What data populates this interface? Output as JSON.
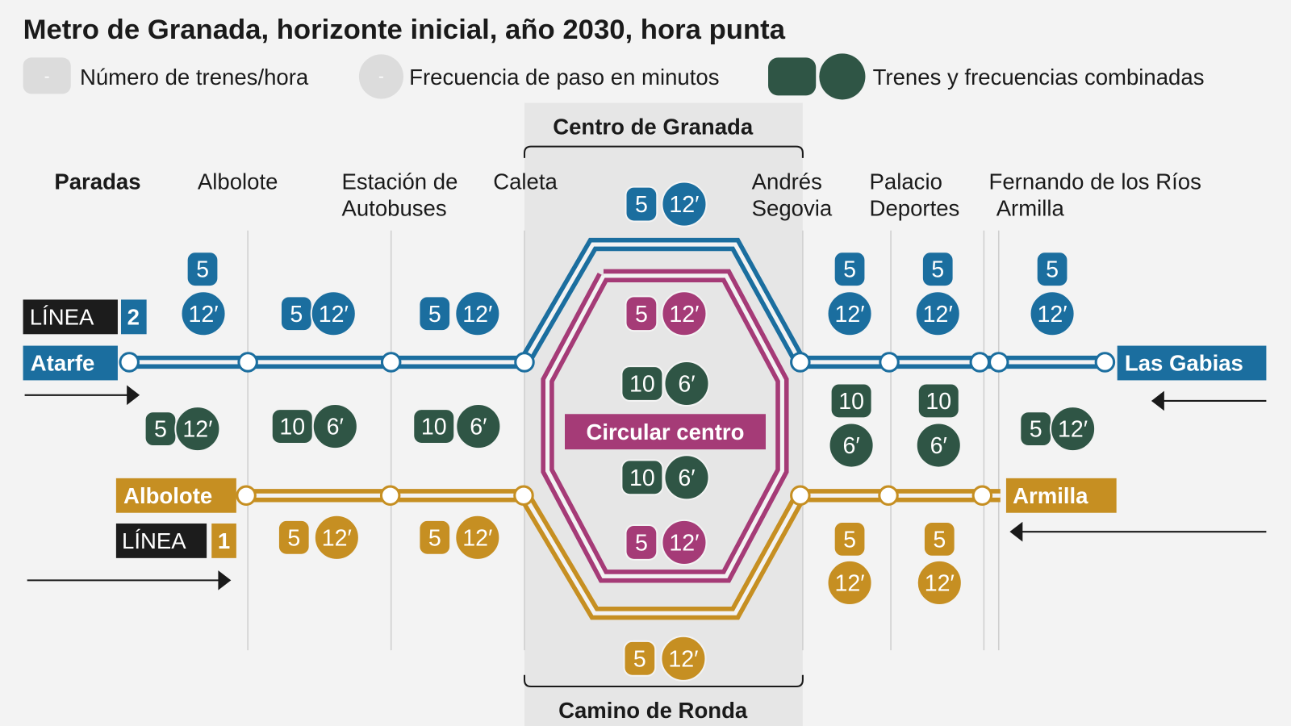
{
  "title": "Metro de Granada, horizonte inicial, año 2030, hora punta",
  "legend": [
    {
      "symbol": "-",
      "label": "Número de trenes/hora"
    },
    {
      "symbol": "-",
      "label": "Frecuencia de paso en minutos"
    },
    {
      "label": "Trenes y frecuencias combinadas"
    }
  ],
  "colors": {
    "linea2": "#1b6e9f",
    "linea1": "#c68f22",
    "circular": "#a53b77",
    "combined": "#2f5545",
    "label_bg": "#1c1c1c",
    "legend_gray": "#dcdcdc",
    "center_band": "#e6e6e6"
  },
  "center": {
    "top": "Centro de Granada",
    "bottom": "Camino de Ronda"
  },
  "stops_header": "Paradas",
  "stations": [
    {
      "line1": "Albolote",
      "line2": ""
    },
    {
      "line1": "Estación de",
      "line2": "Autobuses"
    },
    {
      "line1": "Caleta",
      "line2": ""
    },
    {
      "line1": "Andrés",
      "line2": "Segovia"
    },
    {
      "line1": "Palacio",
      "line2": "Deportes"
    },
    {
      "line1": "Fernando de los Ríos",
      "line2": "Armilla"
    }
  ],
  "lines": {
    "l2": {
      "word": "LÍNEA",
      "number": "2",
      "from": "Atarfe",
      "to": "Las Gabias"
    },
    "l1": {
      "word": "LÍNEA",
      "number": "1",
      "from": "Albolote",
      "to": "Armilla"
    },
    "circular": "Circular centro"
  },
  "badges": [
    {
      "line": "linea2",
      "trains": "5",
      "freq": "12′"
    },
    {
      "line": "linea2",
      "trains": "5",
      "freq": "12′"
    },
    {
      "line": "linea2",
      "trains": "5",
      "freq": "12′"
    },
    {
      "line": "linea2",
      "trains": "5",
      "freq": "12′"
    },
    {
      "line": "linea2",
      "trains": "5",
      "freq": "12′"
    },
    {
      "line": "linea2",
      "trains": "5",
      "freq": "12′"
    },
    {
      "line": "linea2",
      "trains": "5",
      "freq": "12′"
    },
    {
      "line": "combined",
      "trains": "5",
      "freq": "12′"
    },
    {
      "line": "combined",
      "trains": "10",
      "freq": "6′"
    },
    {
      "line": "combined",
      "trains": "10",
      "freq": "6′"
    },
    {
      "line": "combined",
      "trains": "10",
      "freq": "6′"
    },
    {
      "line": "combined",
      "trains": "10",
      "freq": "6′"
    },
    {
      "line": "combined",
      "trains": "10",
      "freq": "6′"
    },
    {
      "line": "combined",
      "trains": "10",
      "freq": "6′"
    },
    {
      "line": "combined",
      "trains": "5",
      "freq": "12′"
    },
    {
      "line": "circular",
      "trains": "5",
      "freq": "12′"
    },
    {
      "line": "circular",
      "trains": "5",
      "freq": "12′"
    },
    {
      "line": "linea1",
      "trains": "5",
      "freq": "12′"
    },
    {
      "line": "linea1",
      "trains": "5",
      "freq": "12′"
    },
    {
      "line": "linea1",
      "trains": "5",
      "freq": "12′"
    },
    {
      "line": "linea1",
      "trains": "5",
      "freq": "12′"
    },
    {
      "line": "linea1",
      "trains": "5",
      "freq": "12′"
    }
  ]
}
